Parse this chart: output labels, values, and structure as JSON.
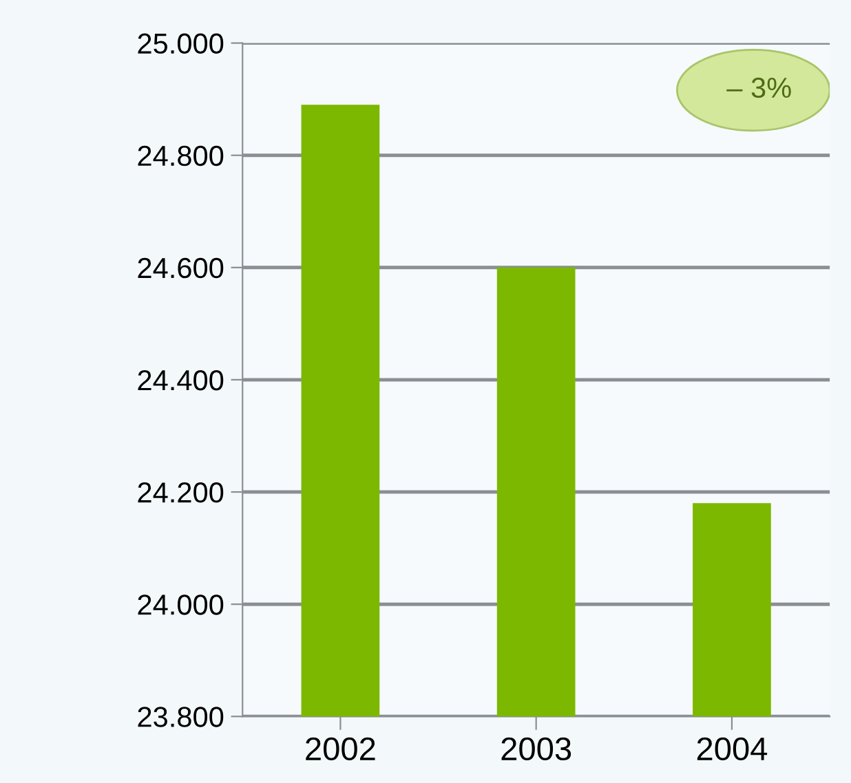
{
  "chart_data": {
    "type": "bar",
    "categories": [
      "2002",
      "2003",
      "2004"
    ],
    "values": [
      24890,
      24600,
      24180
    ],
    "color": "#7db800",
    "ylim": [
      23800,
      25000
    ],
    "yticks": [
      {
        "value": 23800,
        "label": "23.800"
      },
      {
        "value": 24000,
        "label": "24.000"
      },
      {
        "value": 24200,
        "label": "24.200"
      },
      {
        "value": 24400,
        "label": "24.400"
      },
      {
        "value": 24600,
        "label": "24.600"
      },
      {
        "value": 24800,
        "label": "24.800"
      },
      {
        "value": 25000,
        "label": "25.000"
      }
    ],
    "grid": "y",
    "annotations": [
      "– 3%"
    ]
  }
}
